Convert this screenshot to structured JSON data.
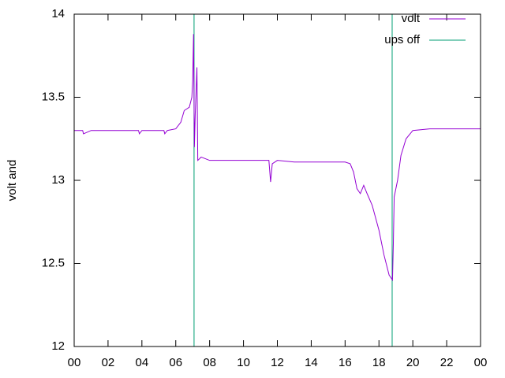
{
  "chart_data": {
    "type": "line",
    "ylabel": "volt and",
    "xlim": [
      0,
      24
    ],
    "xticks": [
      {
        "value": 0,
        "label": "00"
      },
      {
        "value": 2,
        "label": "02"
      },
      {
        "value": 4,
        "label": "04"
      },
      {
        "value": 6,
        "label": "06"
      },
      {
        "value": 8,
        "label": "08"
      },
      10,
      12,
      14,
      16,
      18,
      20,
      22,
      {
        "value": 24,
        "label": "00"
      }
    ],
    "ylim": [
      12,
      14
    ],
    "yticks": [
      12,
      12.5,
      13,
      13.5,
      14
    ],
    "legend": "top-right",
    "series": [
      {
        "name": "volt",
        "color": "#9400d3",
        "x": [
          0,
          0.5,
          0.55,
          1,
          2,
          3,
          3.8,
          3.85,
          4,
          5,
          5.3,
          5.35,
          5.5,
          6,
          6.3,
          6.5,
          6.8,
          6.95,
          7.0,
          7.05,
          7.1,
          7.15,
          7.25,
          7.3,
          7.5,
          8,
          9,
          10,
          11,
          11.5,
          11.6,
          11.7,
          12,
          13,
          14,
          15,
          16,
          16.3,
          16.5,
          16.7,
          16.9,
          17.1,
          17.3,
          17.6,
          18.0,
          18.3,
          18.6,
          18.8,
          18.85,
          18.9,
          19.1,
          19.3,
          19.6,
          20,
          21,
          22,
          23,
          24
        ],
        "values": [
          13.3,
          13.3,
          13.28,
          13.3,
          13.3,
          13.3,
          13.3,
          13.28,
          13.3,
          13.3,
          13.3,
          13.28,
          13.3,
          13.31,
          13.35,
          13.42,
          13.44,
          13.5,
          13.6,
          13.88,
          13.2,
          13.4,
          13.68,
          13.12,
          13.14,
          13.12,
          13.12,
          13.12,
          13.12,
          13.12,
          12.99,
          13.1,
          13.12,
          13.11,
          13.11,
          13.11,
          13.11,
          13.1,
          13.05,
          12.95,
          12.92,
          12.97,
          12.92,
          12.85,
          12.7,
          12.55,
          12.43,
          12.4,
          12.62,
          12.9,
          13.0,
          13.15,
          13.25,
          13.3,
          13.31,
          13.31,
          13.31,
          13.31
        ]
      },
      {
        "name": "ups off",
        "color": "#009e73",
        "x": [
          7.08,
          7.08,
          null,
          18.78,
          18.78
        ],
        "values": [
          12,
          14,
          null,
          12,
          14
        ]
      }
    ]
  }
}
